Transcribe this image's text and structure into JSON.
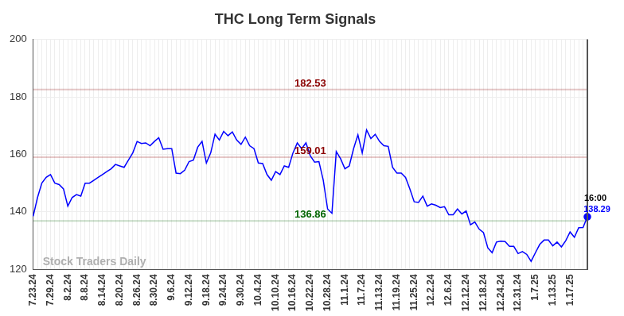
{
  "chart_data": {
    "type": "line",
    "title": "THC Long Term Signals",
    "color": "#0000ff",
    "grid": true,
    "categories": [
      "7.23.24",
      null,
      null,
      null,
      "7.29.24",
      null,
      null,
      null,
      "8.2.24",
      null,
      null,
      null,
      "8.8.24",
      null,
      null,
      null,
      "8.14.24",
      null,
      null,
      null,
      "8.20.24",
      null,
      null,
      null,
      "8.26.24",
      null,
      null,
      null,
      "8.30.24",
      null,
      null,
      null,
      "9.6.24",
      null,
      null,
      null,
      "9.12.24",
      null,
      null,
      null,
      "9.18.24",
      null,
      null,
      null,
      "9.24.24",
      null,
      null,
      null,
      "9.30.24",
      null,
      null,
      null,
      "10.4.24",
      null,
      null,
      null,
      "10.10.24",
      null,
      null,
      null,
      "10.16.24",
      null,
      null,
      null,
      "10.22.24",
      null,
      null,
      null,
      "10.28.24",
      null,
      null,
      null,
      "11.1.24",
      null,
      null,
      null,
      "11.7.24",
      null,
      null,
      null,
      "11.13.24",
      null,
      null,
      null,
      "11.19.24",
      null,
      null,
      null,
      "11.25.24",
      null,
      null,
      null,
      "12.2.24",
      null,
      null,
      null,
      "12.6.24",
      null,
      null,
      null,
      "12.12.24",
      null,
      null,
      null,
      "12.18.24",
      null,
      null,
      null,
      "12.24.24",
      null,
      null,
      null,
      "12.31.24",
      null,
      null,
      null,
      "1.7.25",
      null,
      null,
      null,
      "1.13.25",
      null,
      null,
      null,
      "1.17.25",
      null,
      null,
      null,
      null
    ],
    "values": [
      138.5,
      145,
      150,
      152,
      153,
      150,
      149.5,
      148,
      142,
      145,
      146,
      145.5,
      150,
      150,
      151,
      152,
      153,
      154,
      155,
      156.5,
      156,
      155.5,
      158,
      160.5,
      164.5,
      163.8,
      164,
      163,
      164.5,
      165.8,
      161.8,
      162,
      162,
      153.5,
      153.3,
      154.5,
      157.5,
      158,
      162.5,
      164.5,
      157,
      160.5,
      167,
      165,
      168,
      166.5,
      167.8,
      165,
      163.5,
      166,
      163,
      162,
      157,
      156.8,
      153,
      151,
      154,
      153,
      156,
      155.5,
      160.5,
      164,
      162,
      164,
      159.5,
      157.3,
      157.5,
      151,
      141,
      139.5,
      161,
      158.5,
      155,
      156,
      162,
      166.8,
      160.5,
      168.5,
      165.5,
      167,
      164.5,
      163,
      162.8,
      155.5,
      153.5,
      153.5,
      152,
      148,
      143.5,
      143.3,
      145.5,
      142,
      142.8,
      142.3,
      141.5,
      141.8,
      139,
      139,
      141,
      139.3,
      140.3,
      135.5,
      136.5,
      134,
      132.8,
      127.5,
      125.8,
      129.5,
      129.8,
      129.7,
      128,
      128,
      125.5,
      126.2,
      125.2,
      122.8,
      125.8,
      128.7,
      130.2,
      130.2,
      128.2,
      129.5,
      127.8,
      130,
      133,
      131.2,
      134.5,
      134.6,
      138.29
    ],
    "ylim": [
      120,
      200
    ],
    "yticks": [
      120,
      140,
      160,
      180,
      200
    ],
    "levels": [
      {
        "value": 182.53,
        "label": "182.53",
        "color": "#8b0000"
      },
      {
        "value": 159.01,
        "label": "159.01",
        "color": "#8b0000"
      },
      {
        "value": 136.86,
        "label": "136.86",
        "color": "#006400"
      }
    ],
    "last_point": {
      "time_label": "16:00",
      "label": "138.29"
    },
    "watermark": "Stock Traders Daily"
  }
}
